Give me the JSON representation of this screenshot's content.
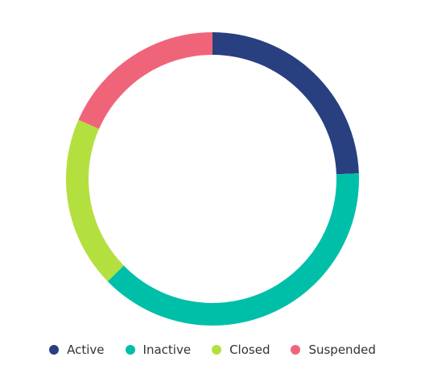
{
  "chart_data": {
    "type": "pie",
    "variant": "donut",
    "categories": [
      "Active",
      "Inactive",
      "Closed",
      "Suspended"
    ],
    "values": [
      24.4,
      38.3,
      18.9,
      18.4
    ],
    "colors": [
      "#283f80",
      "#00bfa8",
      "#b3e03f",
      "#f0647a"
    ],
    "legend_position": "bottom-center"
  }
}
